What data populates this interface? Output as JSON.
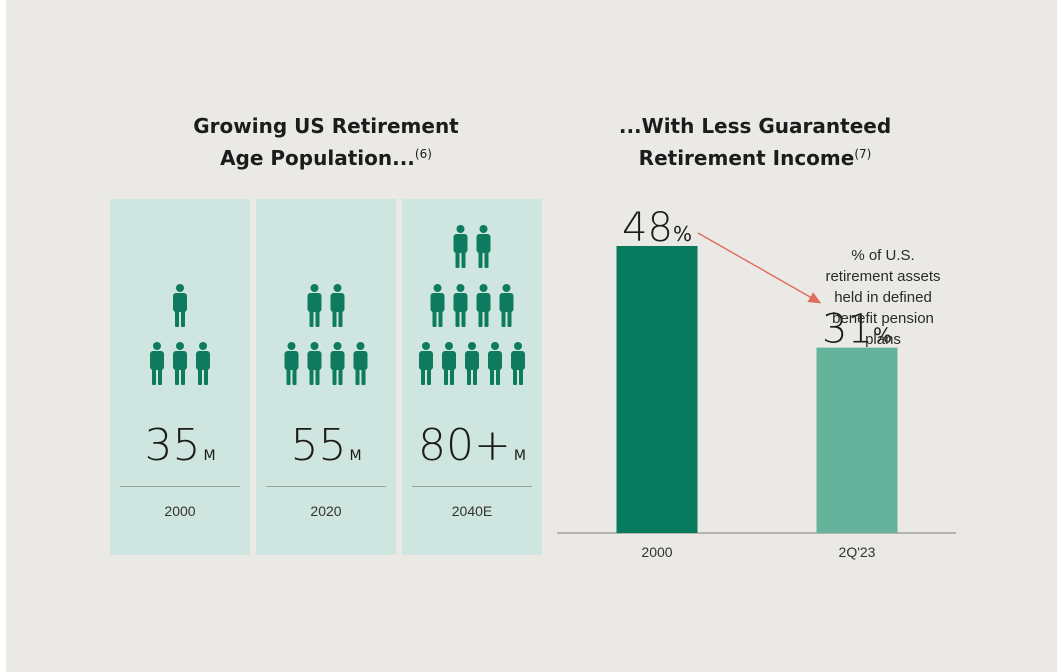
{
  "left": {
    "title_line1": "Growing US Retirement",
    "title_line2": "Age Population...",
    "title_note": "(6)",
    "panels": [
      {
        "value": "35",
        "unit": "M",
        "year": "2000",
        "rows": [
          1,
          3
        ]
      },
      {
        "value": "55",
        "unit": "M",
        "year": "2020",
        "rows": [
          2,
          4
        ]
      },
      {
        "value": "80+",
        "unit": "M",
        "year": "2040E",
        "rows": [
          2,
          4,
          5
        ]
      }
    ]
  },
  "right": {
    "title_line1": "...With Less Guaranteed",
    "title_line2": "Retirement Income",
    "title_note": "(7)",
    "annotation": [
      "% of U.S.",
      "retirement assets",
      "held in defined",
      "benefit pension",
      "plans"
    ]
  },
  "colors": {
    "background": "#ebe9e5",
    "panel": "#cfe5e0",
    "person": "#0e7a5e",
    "bar_2000": "#077a5e",
    "bar_2q23": "#65b39b",
    "arrow": "#e06a5c"
  },
  "chart_data": {
    "type": "bar",
    "categories": [
      "2000",
      "2Q'23"
    ],
    "values": [
      48,
      31
    ],
    "value_suffix": "%",
    "title": "...With Less Guaranteed Retirement Income",
    "xlabel": "",
    "ylabel": "",
    "ylim": [
      0,
      48
    ],
    "grid": false,
    "annotation": "% of U.S. retirement assets held in defined benefit pension plans"
  },
  "icons": {
    "person": "person-icon",
    "arrow": "arrow-icon"
  }
}
